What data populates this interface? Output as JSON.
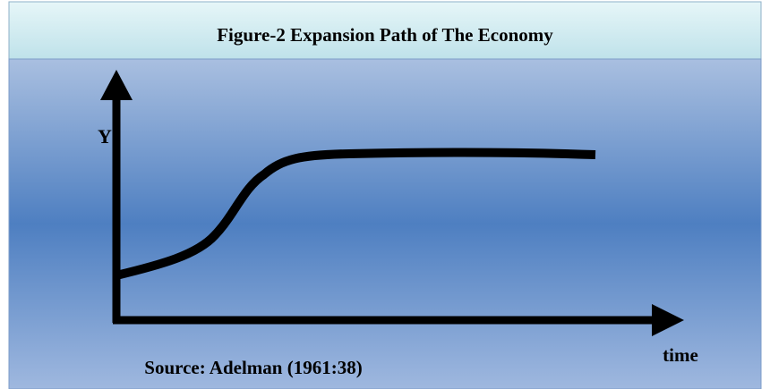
{
  "title": "Figure-2  Expansion Path of The Economy",
  "y_label": "Y",
  "x_label": "time",
  "source": "Source: Adelman (1961:38)"
}
